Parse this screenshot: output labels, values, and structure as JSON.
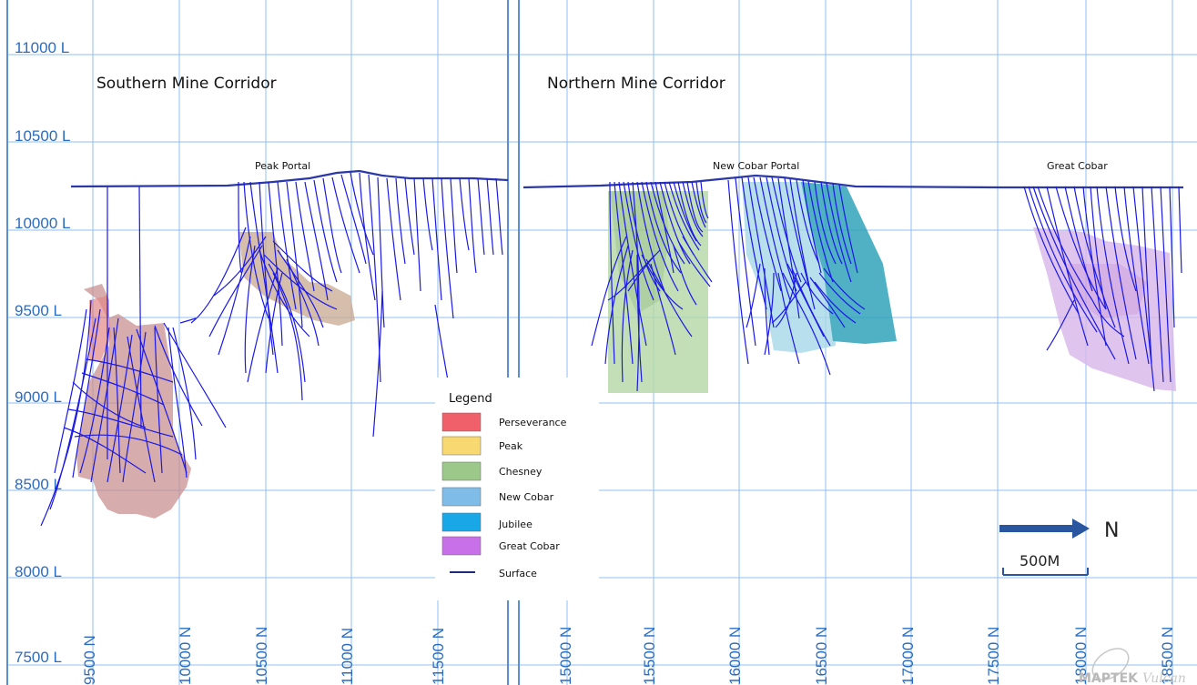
{
  "section": {
    "rl_labels": [
      "11000 L",
      "10500 L",
      "10000 L",
      "9500 L",
      "9000 L",
      "8500 L",
      "8000 L",
      "7500 L"
    ],
    "north_labels_left": [
      "9500 N",
      "10000 N",
      "10500 N",
      "11000 N",
      "11500 N"
    ],
    "north_labels_right": [
      "15000 N",
      "15500 N",
      "16000 N",
      "16500 N",
      "17000 N",
      "17500 N",
      "18000 N",
      "18500 N"
    ],
    "corridors": {
      "southern": "Southern Mine Corridor",
      "northern": "Northern Mine Corridor"
    },
    "portals": {
      "peak": "Peak Portal",
      "new_cobar": "New Cobar Portal",
      "great_cobar": "Great Cobar"
    }
  },
  "legend": {
    "title": "Legend",
    "items": [
      {
        "label": "Perseverance",
        "color": "#f0606a"
      },
      {
        "label": "Peak",
        "color": "#f8d870"
      },
      {
        "label": "Chesney",
        "color": "#9cc88a"
      },
      {
        "label": "New Cobar",
        "color": "#80bce8"
      },
      {
        "label": "Jubilee",
        "color": "#18a8e8"
      },
      {
        "label": "Great Cobar",
        "color": "#c870e8"
      },
      {
        "label": "Surface",
        "color": "#1e2a7a"
      }
    ]
  },
  "scale": {
    "north": "N",
    "bar": "500M"
  },
  "watermark": {
    "brand": "MAPTEK",
    "product": "Vulcan"
  },
  "colors": {
    "grid": "#8fbff0",
    "label": "#2a6cc0",
    "drillhole": "#1a18e8",
    "surface": "#2a38a8",
    "perseverance_solid": "#c89090",
    "peak_solid": "#d8b898",
    "chesney_solid": "#a8cc98",
    "new_cobar_solid": "#9cd0e0",
    "jubilee_solid": "#2aa0b8",
    "great_cobar_solid": "#d0a8e0"
  }
}
